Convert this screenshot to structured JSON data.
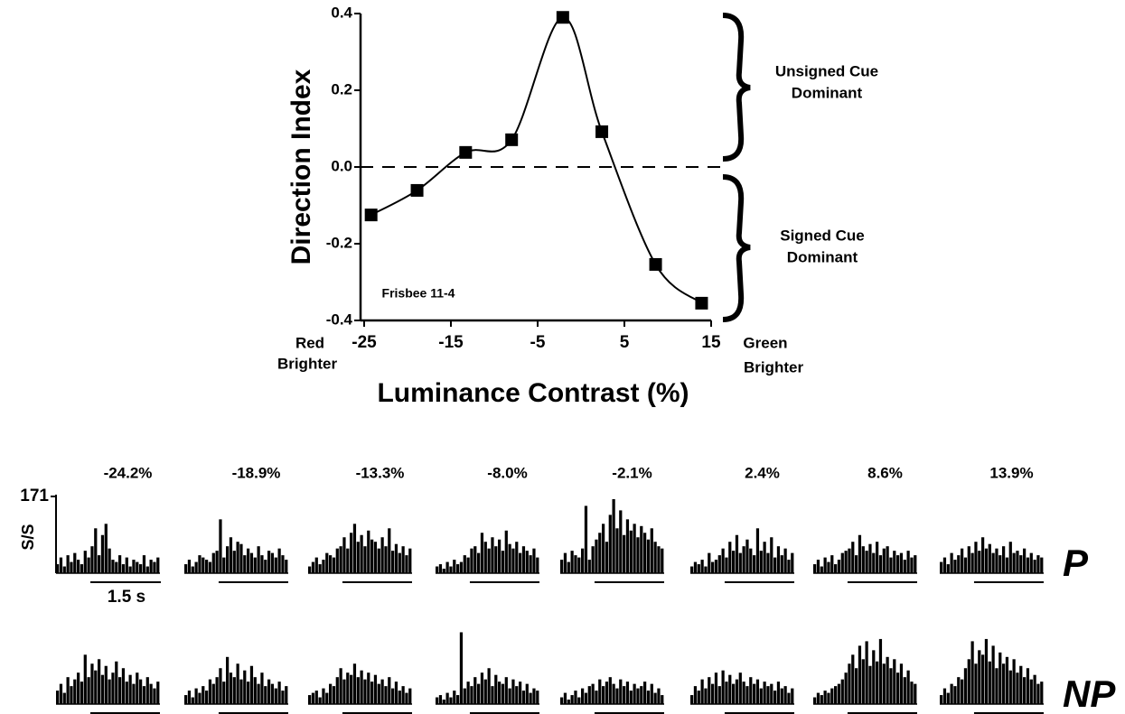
{
  "chart_data": [
    {
      "type": "line",
      "xlabel": "Luminance Contrast (%)",
      "ylabel": "Direction Index",
      "x": [
        -24.2,
        -18.9,
        -13.3,
        -8.0,
        -2.1,
        2.4,
        8.6,
        13.9
      ],
      "series": [
        {
          "color": "#000000",
          "values": [
            -0.125,
            -0.061,
            0.038,
            0.071,
            0.39,
            0.092,
            -0.254,
            -0.355
          ]
        }
      ],
      "xlim": [
        -25,
        15
      ],
      "xticks": [
        -25,
        -15,
        -5,
        5,
        15
      ],
      "ylim": [
        -0.4,
        0.4
      ],
      "yticks": [
        -0.4,
        -0.2,
        {
          "value": 0,
          "label": "0.0"
        },
        0.2,
        0.4
      ],
      "hline": 0,
      "note": "Frisbee 11-4",
      "left_label": [
        "Red",
        "Brighter"
      ],
      "right_label": [
        "Green",
        "Brighter"
      ],
      "upper_bracket_label": [
        "Unsigned Cue",
        "Dominant"
      ],
      "lower_bracket_label": [
        "Signed Cue",
        "Dominant"
      ]
    },
    {
      "type": "psth",
      "panel_titles": [
        "-24.2%",
        "-18.9%",
        "-13.3%",
        "-8.0%",
        "-2.1%",
        "2.4%",
        "8.6%",
        "13.9%"
      ],
      "ylabel": "S/S",
      "ylim": [
        0,
        171
      ],
      "yticks": [
        171
      ],
      "scale_label": "1.5 s",
      "color": "#000000",
      "rows": [
        {
          "name": "P",
          "panels": [
            [
              20,
              35,
              15,
              40,
              25,
              45,
              30,
              20,
              50,
              35,
              60,
              100,
              40,
              85,
              110,
              55,
              30,
              25,
              40,
              20,
              35,
              15,
              30,
              25,
              20,
              40,
              15,
              30,
              25,
              35
            ],
            [
              20,
              30,
              15,
              25,
              40,
              35,
              30,
              25,
              45,
              50,
              120,
              35,
              60,
              80,
              50,
              70,
              65,
              40,
              55,
              45,
              35,
              60,
              40,
              30,
              50,
              45,
              35,
              55,
              40,
              30
            ],
            [
              15,
              25,
              35,
              20,
              30,
              45,
              40,
              35,
              55,
              60,
              80,
              55,
              90,
              110,
              70,
              85,
              60,
              95,
              75,
              70,
              55,
              80,
              60,
              100,
              50,
              65,
              45,
              60,
              40,
              55
            ],
            [
              15,
              20,
              10,
              25,
              15,
              30,
              20,
              25,
              40,
              35,
              55,
              60,
              45,
              90,
              70,
              55,
              80,
              60,
              75,
              50,
              95,
              65,
              55,
              70,
              45,
              60,
              50,
              40,
              55,
              35
            ],
            [
              30,
              45,
              25,
              50,
              40,
              35,
              55,
              150,
              30,
              60,
              75,
              90,
              110,
              70,
              130,
              165,
              100,
              140,
              85,
              120,
              95,
              110,
              80,
              105,
              90,
              75,
              100,
              70,
              60,
              55
            ],
            [
              15,
              25,
              20,
              30,
              15,
              45,
              25,
              30,
              40,
              55,
              35,
              70,
              50,
              85,
              45,
              60,
              75,
              55,
              40,
              100,
              50,
              70,
              45,
              80,
              35,
              60,
              40,
              55,
              30,
              45
            ],
            [
              20,
              30,
              15,
              35,
              25,
              40,
              20,
              30,
              45,
              50,
              55,
              70,
              40,
              85,
              60,
              50,
              65,
              45,
              70,
              40,
              55,
              60,
              35,
              50,
              40,
              45,
              30,
              50,
              35,
              40
            ],
            [
              25,
              35,
              20,
              45,
              30,
              40,
              55,
              35,
              60,
              45,
              70,
              50,
              80,
              55,
              65,
              45,
              55,
              40,
              60,
              35,
              70,
              45,
              50,
              40,
              55,
              35,
              45,
              30,
              40,
              35
            ]
          ]
        },
        {
          "name": "NP",
          "panels": [
            [
              30,
              45,
              25,
              60,
              40,
              55,
              70,
              50,
              110,
              60,
              90,
              75,
              100,
              65,
              85,
              55,
              70,
              95,
              60,
              80,
              50,
              65,
              45,
              70,
              55,
              40,
              60,
              45,
              35,
              50
            ],
            [
              20,
              30,
              15,
              35,
              25,
              40,
              30,
              55,
              45,
              60,
              80,
              50,
              105,
              70,
              60,
              90,
              55,
              75,
              50,
              85,
              60,
              45,
              70,
              40,
              55,
              45,
              35,
              50,
              30,
              40
            ],
            [
              20,
              25,
              30,
              15,
              35,
              25,
              45,
              40,
              60,
              80,
              55,
              70,
              65,
              90,
              60,
              75,
              55,
              70,
              50,
              65,
              45,
              55,
              40,
              60,
              35,
              50,
              30,
              40,
              25,
              35
            ],
            [
              15,
              20,
              10,
              25,
              15,
              30,
              20,
              160,
              35,
              50,
              40,
              60,
              45,
              70,
              55,
              80,
              40,
              65,
              50,
              45,
              60,
              35,
              55,
              40,
              50,
              30,
              45,
              25,
              35,
              30
            ],
            [
              15,
              25,
              10,
              20,
              30,
              15,
              35,
              25,
              40,
              45,
              30,
              55,
              40,
              50,
              60,
              45,
              35,
              55,
              40,
              50,
              30,
              45,
              35,
              40,
              50,
              30,
              45,
              25,
              35,
              20
            ],
            [
              20,
              40,
              30,
              55,
              35,
              60,
              45,
              70,
              40,
              75,
              50,
              65,
              45,
              55,
              70,
              50,
              40,
              60,
              45,
              55,
              35,
              50,
              40,
              45,
              30,
              50,
              35,
              40,
              25,
              35
            ],
            [
              15,
              25,
              20,
              30,
              25,
              35,
              40,
              45,
              55,
              70,
              90,
              110,
              80,
              130,
              100,
              140,
              85,
              120,
              95,
              145,
              90,
              105,
              80,
              100,
              70,
              90,
              60,
              75,
              50,
              45
            ],
            [
              20,
              35,
              25,
              45,
              40,
              60,
              55,
              80,
              100,
              140,
              90,
              120,
              110,
              145,
              95,
              130,
              80,
              115,
              90,
              105,
              75,
              100,
              70,
              85,
              60,
              80,
              55,
              65,
              45,
              50
            ]
          ]
        }
      ]
    }
  ]
}
